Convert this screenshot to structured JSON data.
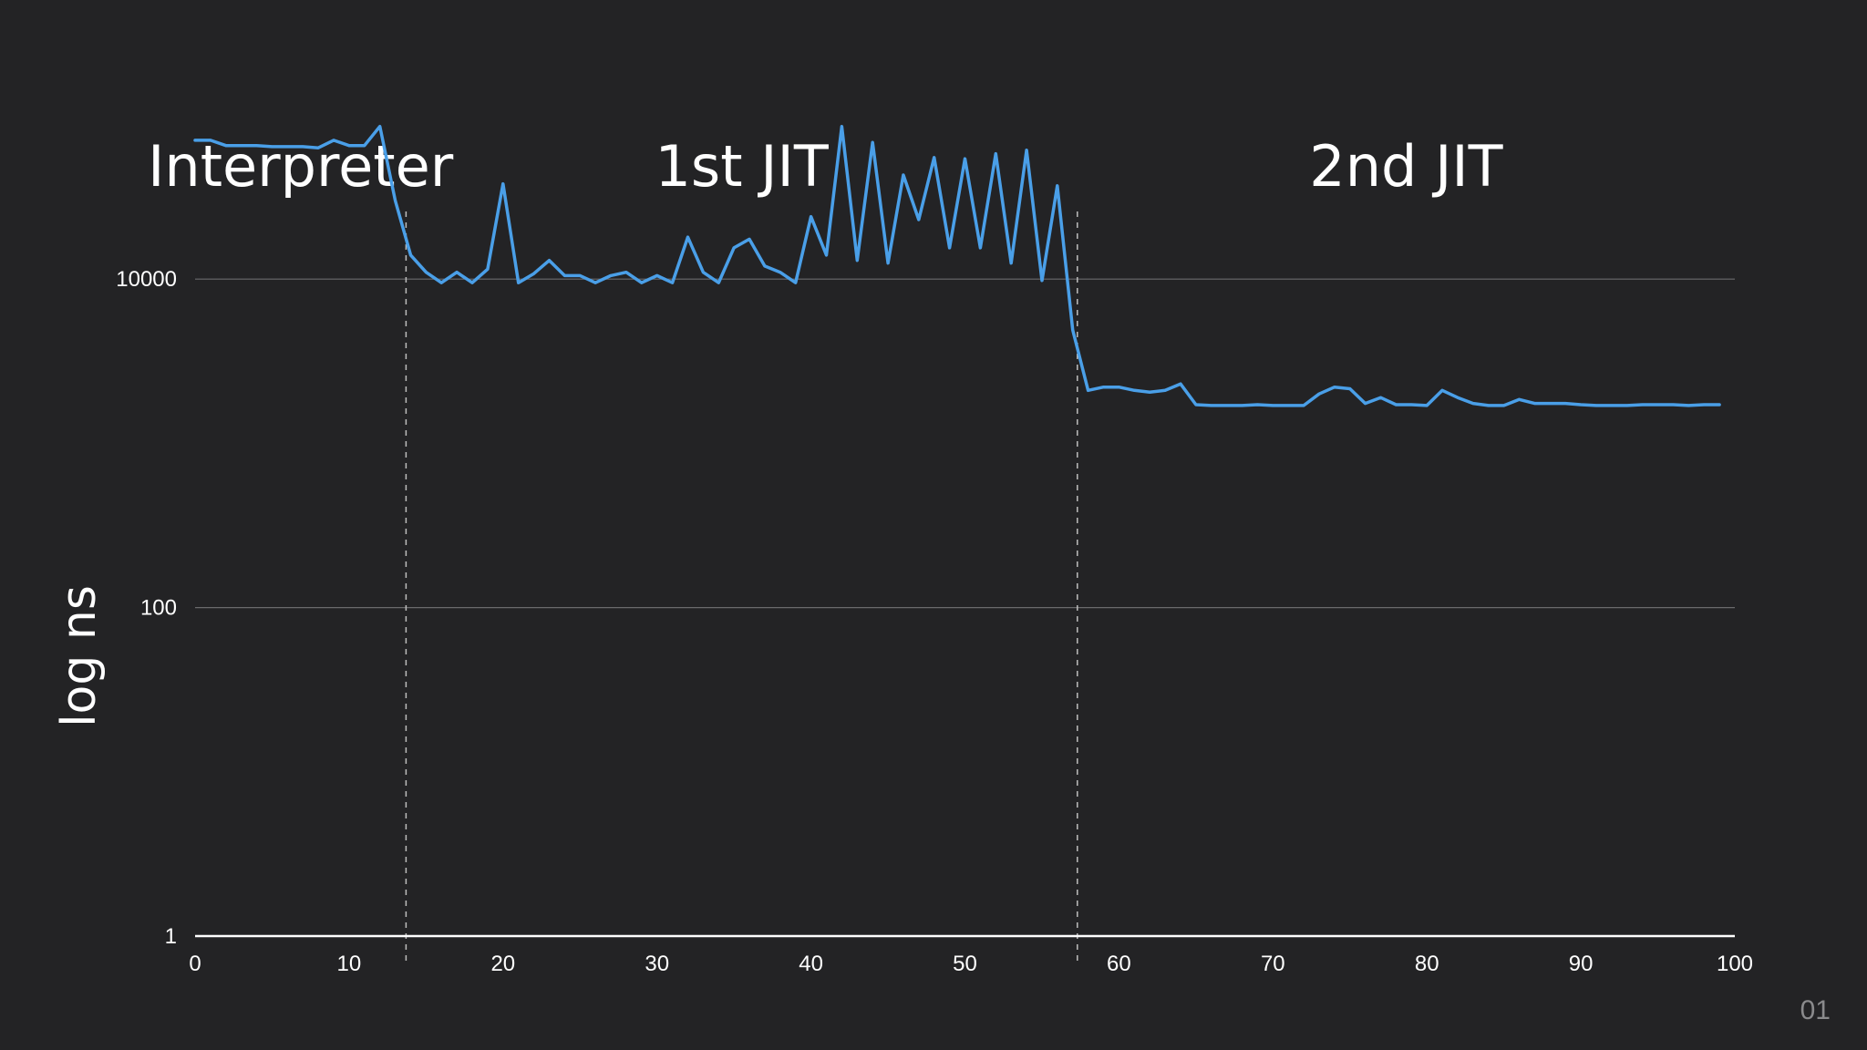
{
  "slide_number": "01",
  "chart_data": {
    "type": "line",
    "ylabel": "log ns",
    "xlabel": "",
    "y_scale": "log",
    "xlim": [
      0,
      100
    ],
    "ylim": [
      1,
      100000
    ],
    "x_ticks": [
      0,
      10,
      20,
      30,
      40,
      50,
      60,
      70,
      80,
      90,
      100
    ],
    "y_ticks": [
      {
        "value": 1,
        "label": "1"
      },
      {
        "value": 100,
        "label": "100"
      },
      {
        "value": 10000,
        "label": "10000"
      }
    ],
    "grid": "horizontal",
    "colors": {
      "line": "#4a9fe8",
      "background": "#232325",
      "grid": "#6a6a6c",
      "divider": "#bdbdbd"
    },
    "phases": [
      {
        "label": "Interpreter",
        "start": 0,
        "end": 13.7
      },
      {
        "label": "1st JIT",
        "start": 13.7,
        "end": 57.3
      },
      {
        "label": "2nd JIT",
        "start": 57.3,
        "end": 100
      }
    ],
    "dividers": [
      13.7,
      57.3
    ],
    "series": [
      {
        "x": [
          0,
          1,
          2,
          3,
          4,
          5,
          6,
          7,
          8,
          9,
          10,
          11,
          12,
          13,
          14,
          15,
          16,
          17,
          18,
          19,
          20,
          21,
          22,
          23,
          24,
          25,
          26,
          27,
          28,
          29,
          30,
          31,
          32,
          33,
          34,
          35,
          36,
          37,
          38,
          39,
          40,
          41,
          42,
          43,
          44,
          45,
          46,
          47,
          48,
          49,
          50,
          51,
          52,
          53,
          54,
          55,
          56,
          57,
          58,
          59,
          60,
          61,
          62,
          63,
          64,
          65,
          66,
          67,
          68,
          69,
          70,
          71,
          72,
          73,
          74,
          75,
          76,
          77,
          78,
          79,
          80,
          81,
          82,
          83,
          84,
          85,
          86,
          87,
          88,
          89,
          90,
          91,
          92,
          93,
          94,
          95,
          96,
          97,
          98,
          99
        ],
        "values": [
          70000,
          70000,
          65000,
          65000,
          65000,
          64000,
          64000,
          64000,
          63000,
          70000,
          65000,
          65000,
          85000,
          30000,
          14000,
          11000,
          9500,
          11000,
          9500,
          11500,
          38000,
          9500,
          10800,
          13000,
          10500,
          10500,
          9500,
          10500,
          11000,
          9500,
          10500,
          9500,
          18000,
          11000,
          9500,
          15500,
          17500,
          12000,
          11000,
          9500,
          24000,
          14000,
          85000,
          13000,
          68000,
          12500,
          43000,
          23000,
          55000,
          15500,
          54000,
          15500,
          58000,
          12500,
          61000,
          9800,
          37000,
          4900,
          2100,
          2200,
          2200,
          2100,
          2050,
          2100,
          2300,
          1720,
          1700,
          1700,
          1700,
          1720,
          1700,
          1700,
          1700,
          2000,
          2200,
          2150,
          1750,
          1900,
          1720,
          1720,
          1700,
          2100,
          1900,
          1750,
          1700,
          1700,
          1850,
          1750,
          1750,
          1750,
          1720,
          1700,
          1700,
          1700,
          1720,
          1720,
          1720,
          1700,
          1720,
          1720
        ]
      }
    ]
  }
}
